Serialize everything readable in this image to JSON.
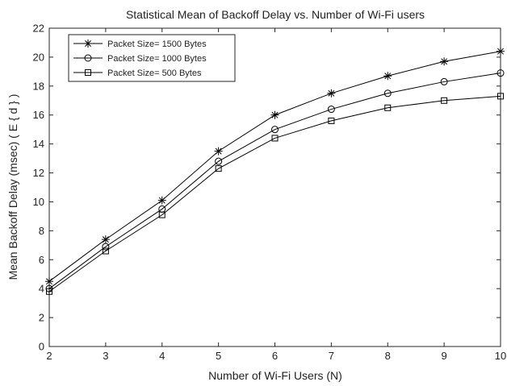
{
  "chart_data": {
    "type": "line",
    "title": "Statistical Mean of Backoff Delay vs. Number of Wi-Fi users",
    "xlabel": "Number of Wi-Fi Users (N)",
    "ylabel": "Mean Backoff Delay (msec) ( E { d } )",
    "x": [
      2,
      3,
      4,
      5,
      6,
      7,
      8,
      9,
      10
    ],
    "xlim": [
      2,
      10
    ],
    "ylim": [
      0,
      22
    ],
    "xticks": [
      "2",
      "3",
      "4",
      "5",
      "6",
      "7",
      "8",
      "9",
      "10"
    ],
    "yticks": [
      "0",
      "2",
      "4",
      "6",
      "8",
      "10",
      "12",
      "14",
      "16",
      "18",
      "20",
      "22"
    ],
    "grid": false,
    "legend_position": "top-left",
    "series": [
      {
        "name": "Packet Size= 1500 Bytes",
        "marker": "asterisk",
        "values": [
          4.5,
          7.4,
          10.1,
          13.5,
          16.0,
          17.5,
          18.7,
          19.7,
          20.4
        ]
      },
      {
        "name": "Packet Size= 1000 Bytes",
        "marker": "circle",
        "values": [
          4.0,
          6.9,
          9.5,
          12.8,
          15.0,
          16.4,
          17.5,
          18.3,
          18.9
        ]
      },
      {
        "name": "Packet Size= 500 Bytes",
        "marker": "square",
        "values": [
          3.8,
          6.6,
          9.1,
          12.3,
          14.4,
          15.6,
          16.5,
          17.0,
          17.3
        ]
      }
    ]
  }
}
